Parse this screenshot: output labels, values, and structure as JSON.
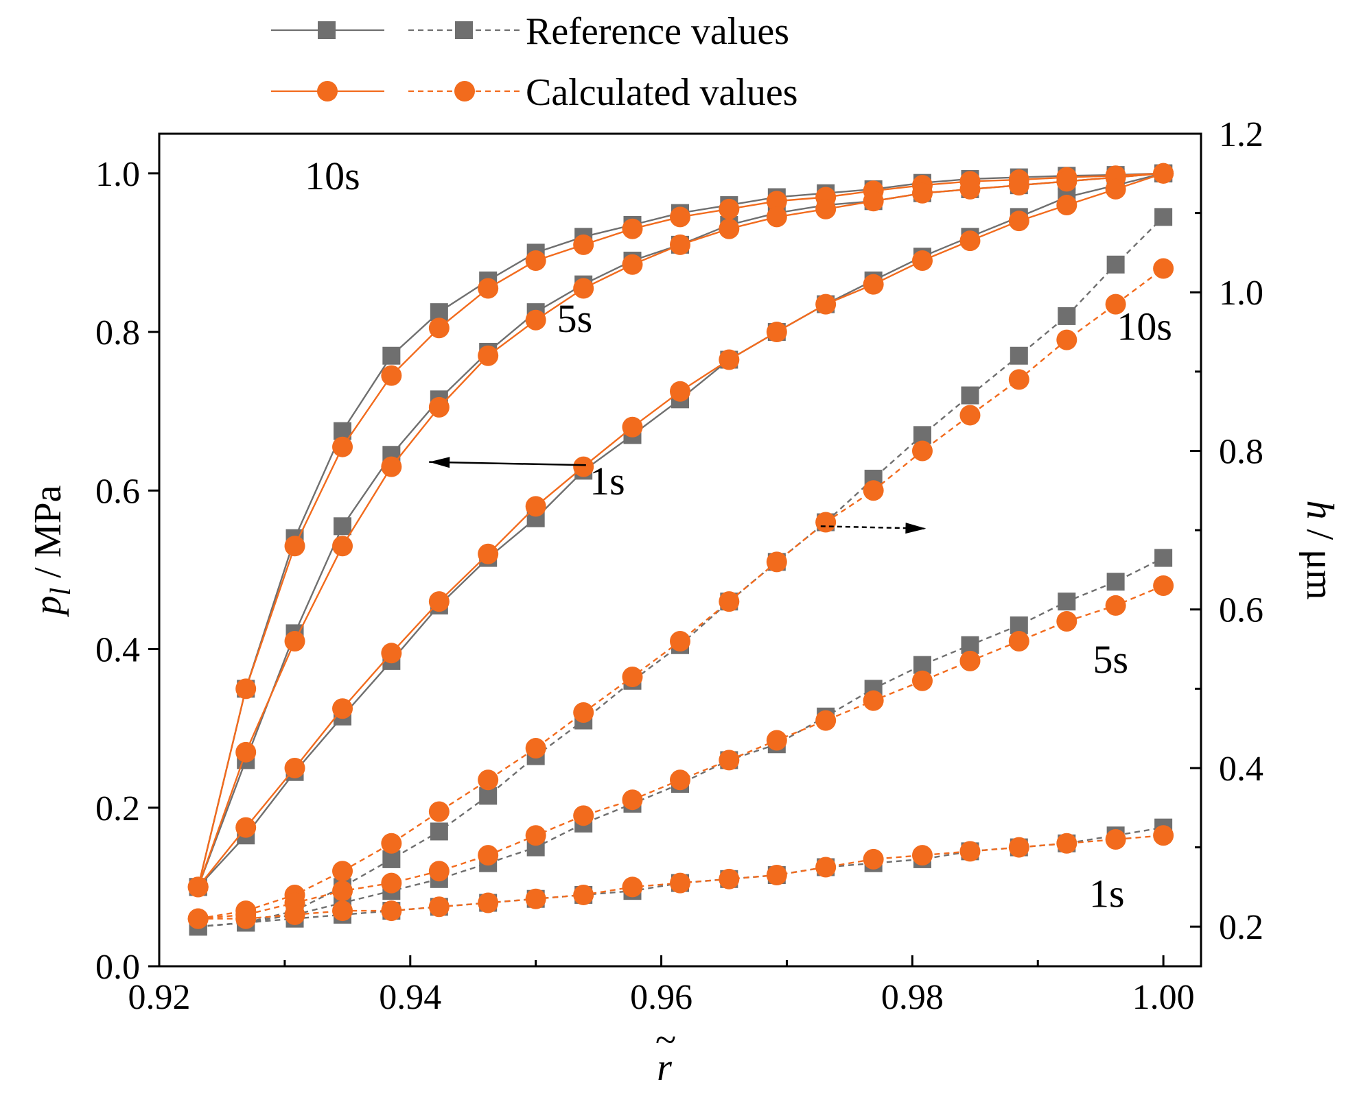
{
  "chart_data": {
    "type": "line",
    "x_axis": {
      "label": "r",
      "label_accent": "~",
      "range": [
        0.92,
        1.003
      ],
      "ticks": [
        0.92,
        0.94,
        0.96,
        0.98,
        1.0
      ],
      "tick_labels": [
        "0.92",
        "0.94",
        "0.96",
        "0.98",
        "1.00"
      ]
    },
    "y_left": {
      "label_var": "p",
      "label_sub": "l",
      "label_unit": " / MPa",
      "range": [
        0,
        1.05
      ],
      "ticks": [
        0,
        0.2,
        0.4,
        0.6,
        0.8,
        1.0
      ],
      "tick_labels": [
        "0.0",
        "0.2",
        "0.4",
        "0.6",
        "0.8",
        "1.0"
      ]
    },
    "y_right": {
      "label_var": "h",
      "label_unit": " / μm",
      "range": [
        0.15,
        1.2
      ],
      "ticks": [
        0.2,
        0.4,
        0.6,
        0.8,
        1.0,
        1.2
      ],
      "tick_labels": [
        "0.2",
        "0.4",
        "0.6",
        "0.8",
        "1.0",
        "1.2"
      ],
      "minor_ticks": [
        0.3,
        0.5,
        0.7,
        0.9,
        1.1
      ]
    },
    "colors": {
      "reference": "#6f6f6f",
      "calculated": "#f26b1d"
    },
    "legend": {
      "position": "top-center",
      "entries": [
        {
          "label": "Reference values",
          "series": "reference"
        },
        {
          "label": "Calculated values",
          "series": "calculated"
        }
      ]
    },
    "x": [
      0.9231,
      0.9269,
      0.9308,
      0.9346,
      0.9385,
      0.9423,
      0.9462,
      0.95,
      0.9538,
      0.9577,
      0.9615,
      0.9654,
      0.9692,
      0.9731,
      0.9769,
      0.9808,
      0.9846,
      0.9885,
      0.9923,
      0.9962,
      1.0
    ],
    "series": [
      {
        "name": "p_l 10s reference",
        "axis": "left",
        "kind": "reference",
        "style": "solid",
        "values": [
          0.1,
          0.35,
          0.54,
          0.675,
          0.77,
          0.825,
          0.865,
          0.9,
          0.92,
          0.935,
          0.95,
          0.96,
          0.97,
          0.975,
          0.98,
          0.988,
          0.993,
          0.995,
          0.997,
          0.998,
          1.0
        ]
      },
      {
        "name": "p_l 10s calculated",
        "axis": "left",
        "kind": "calculated",
        "style": "solid",
        "values": [
          0.1,
          0.35,
          0.53,
          0.655,
          0.745,
          0.805,
          0.855,
          0.89,
          0.91,
          0.93,
          0.945,
          0.955,
          0.965,
          0.97,
          0.978,
          0.985,
          0.99,
          0.992,
          0.995,
          0.997,
          1.0
        ]
      },
      {
        "name": "p_l 5s reference",
        "axis": "left",
        "kind": "reference",
        "style": "solid",
        "values": [
          0.1,
          0.26,
          0.42,
          0.555,
          0.645,
          0.715,
          0.775,
          0.825,
          0.86,
          0.89,
          0.91,
          0.935,
          0.95,
          0.96,
          0.965,
          0.975,
          0.98,
          0.985,
          0.99,
          0.995,
          1.0
        ]
      },
      {
        "name": "p_l 5s calculated",
        "axis": "left",
        "kind": "calculated",
        "style": "solid",
        "values": [
          0.1,
          0.27,
          0.41,
          0.53,
          0.63,
          0.705,
          0.77,
          0.815,
          0.855,
          0.885,
          0.91,
          0.93,
          0.945,
          0.955,
          0.965,
          0.975,
          0.98,
          0.985,
          0.99,
          0.995,
          1.0
        ]
      },
      {
        "name": "p_l 1s reference",
        "axis": "left",
        "kind": "reference",
        "style": "solid",
        "values": [
          0.1,
          0.165,
          0.245,
          0.315,
          0.385,
          0.455,
          0.515,
          0.565,
          0.625,
          0.67,
          0.715,
          0.765,
          0.8,
          0.835,
          0.865,
          0.895,
          0.92,
          0.945,
          0.97,
          0.985,
          1.0
        ]
      },
      {
        "name": "p_l 1s calculated",
        "axis": "left",
        "kind": "calculated",
        "style": "solid",
        "values": [
          0.1,
          0.175,
          0.25,
          0.325,
          0.395,
          0.46,
          0.52,
          0.58,
          0.63,
          0.68,
          0.725,
          0.765,
          0.8,
          0.835,
          0.86,
          0.89,
          0.915,
          0.94,
          0.96,
          0.98,
          1.0
        ]
      },
      {
        "name": "h 10s reference",
        "axis": "right",
        "kind": "reference",
        "style": "dashed",
        "values": [
          0.2,
          0.205,
          0.22,
          0.25,
          0.285,
          0.32,
          0.365,
          0.415,
          0.46,
          0.51,
          0.555,
          0.61,
          0.66,
          0.71,
          0.765,
          0.82,
          0.87,
          0.92,
          0.97,
          1.035,
          1.095
        ]
      },
      {
        "name": "h 10s calculated",
        "axis": "right",
        "kind": "calculated",
        "style": "dashed",
        "values": [
          0.21,
          0.22,
          0.24,
          0.27,
          0.305,
          0.345,
          0.385,
          0.425,
          0.47,
          0.515,
          0.56,
          0.61,
          0.66,
          0.71,
          0.75,
          0.8,
          0.845,
          0.89,
          0.94,
          0.985,
          1.03
        ]
      },
      {
        "name": "h 5s reference",
        "axis": "right",
        "kind": "reference",
        "style": "dashed",
        "values": [
          0.2,
          0.205,
          0.215,
          0.23,
          0.245,
          0.26,
          0.28,
          0.3,
          0.33,
          0.355,
          0.38,
          0.41,
          0.43,
          0.465,
          0.5,
          0.53,
          0.555,
          0.58,
          0.61,
          0.635,
          0.665
        ]
      },
      {
        "name": "h 5s calculated",
        "axis": "right",
        "kind": "calculated",
        "style": "dashed",
        "values": [
          0.21,
          0.215,
          0.23,
          0.245,
          0.255,
          0.27,
          0.29,
          0.315,
          0.34,
          0.36,
          0.385,
          0.41,
          0.435,
          0.46,
          0.485,
          0.51,
          0.535,
          0.56,
          0.585,
          0.605,
          0.63
        ]
      },
      {
        "name": "h 1s reference",
        "axis": "right",
        "kind": "reference",
        "style": "dashed",
        "values": [
          0.2,
          0.205,
          0.21,
          0.215,
          0.22,
          0.225,
          0.23,
          0.235,
          0.24,
          0.245,
          0.255,
          0.26,
          0.265,
          0.275,
          0.28,
          0.285,
          0.295,
          0.3,
          0.305,
          0.315,
          0.325
        ]
      },
      {
        "name": "h 1s calculated",
        "axis": "right",
        "kind": "calculated",
        "style": "dashed",
        "values": [
          0.21,
          0.21,
          0.215,
          0.22,
          0.22,
          0.225,
          0.23,
          0.235,
          0.24,
          0.25,
          0.255,
          0.26,
          0.265,
          0.275,
          0.285,
          0.29,
          0.295,
          0.3,
          0.305,
          0.31,
          0.315
        ]
      }
    ],
    "annotations": [
      {
        "text": "10s",
        "axis": "left",
        "x": 0.9338,
        "y": 0.98
      },
      {
        "text": "5s",
        "axis": "left",
        "x": 0.9531,
        "y": 0.8
      },
      {
        "text": "1s",
        "axis": "left",
        "x": 0.9557,
        "y": 0.595
      },
      {
        "text": "10s",
        "axis": "right",
        "x": 0.9985,
        "y": 0.94
      },
      {
        "text": "5s",
        "axis": "right",
        "x": 0.9958,
        "y": 0.52
      },
      {
        "text": "1s",
        "axis": "right",
        "x": 0.9955,
        "y": 0.225
      }
    ],
    "arrows": [
      {
        "name": "left-axis-arrow",
        "axis": "left",
        "style": "solid",
        "from": [
          0.954,
          0.632
        ],
        "to": [
          0.9415,
          0.636
        ]
      },
      {
        "name": "right-axis-arrow",
        "axis": "right",
        "style": "dashed",
        "from": [
          0.9727,
          0.705
        ],
        "to": [
          0.9811,
          0.702
        ]
      }
    ]
  }
}
